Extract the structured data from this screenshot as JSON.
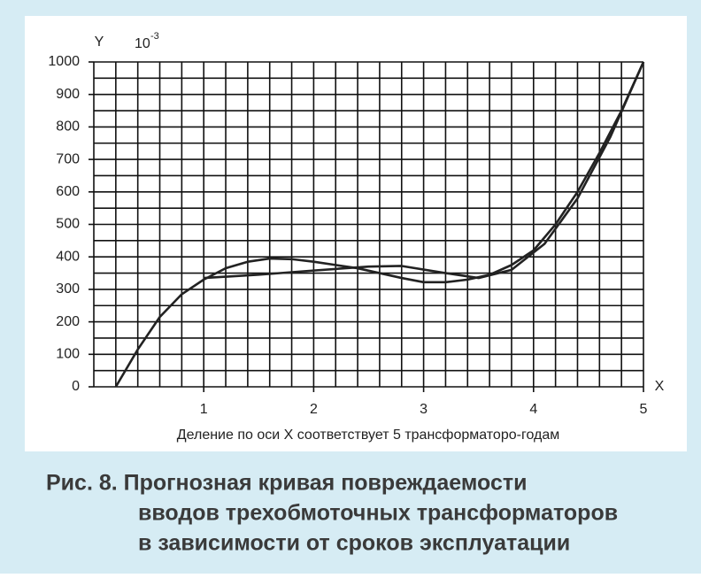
{
  "chart_data": {
    "type": "line",
    "y_label": "Y",
    "y_unit": {
      "base": "10",
      "exponent": "-3"
    },
    "x_label": "X",
    "x_note": "Деление по оси X соответствует 5 трансформаторо-годам",
    "caption": [
      "Рис. 8. Прогнозная кривая повреждаемости",
      "вводов трехобмоточных трансформаторов",
      "в зависимости от сроков эксплуатации"
    ],
    "xlim": [
      0,
      5
    ],
    "xticks": [
      1,
      2,
      3,
      4,
      5
    ],
    "ylim": [
      0,
      1000
    ],
    "yticks": [
      0,
      100,
      200,
      300,
      400,
      500,
      600,
      700,
      800,
      900,
      1000
    ],
    "grid": true,
    "series": [
      {
        "color": "#222222",
        "x": [
          0.2,
          0.4,
          0.6,
          0.8,
          1.0,
          1.2,
          1.4,
          1.6,
          1.8,
          2.0,
          2.2,
          2.4,
          2.6,
          2.8,
          3.0,
          3.2,
          3.4,
          3.6,
          3.8,
          4.0,
          4.2,
          4.4,
          4.6,
          4.8,
          5.0
        ],
        "values": [
          0,
          115,
          215,
          285,
          330,
          365,
          385,
          395,
          393,
          385,
          375,
          365,
          350,
          335,
          322,
          322,
          330,
          345,
          375,
          420,
          500,
          600,
          720,
          850,
          1000
        ]
      },
      {
        "color": "#222222",
        "x": [
          1.0,
          1.5,
          2.0,
          2.5,
          2.8,
          3.2,
          3.5,
          3.8,
          4.1,
          4.4,
          4.7,
          5.0
        ],
        "values": [
          335,
          345,
          358,
          370,
          372,
          350,
          335,
          360,
          440,
          580,
          770,
          1000
        ]
      }
    ]
  }
}
